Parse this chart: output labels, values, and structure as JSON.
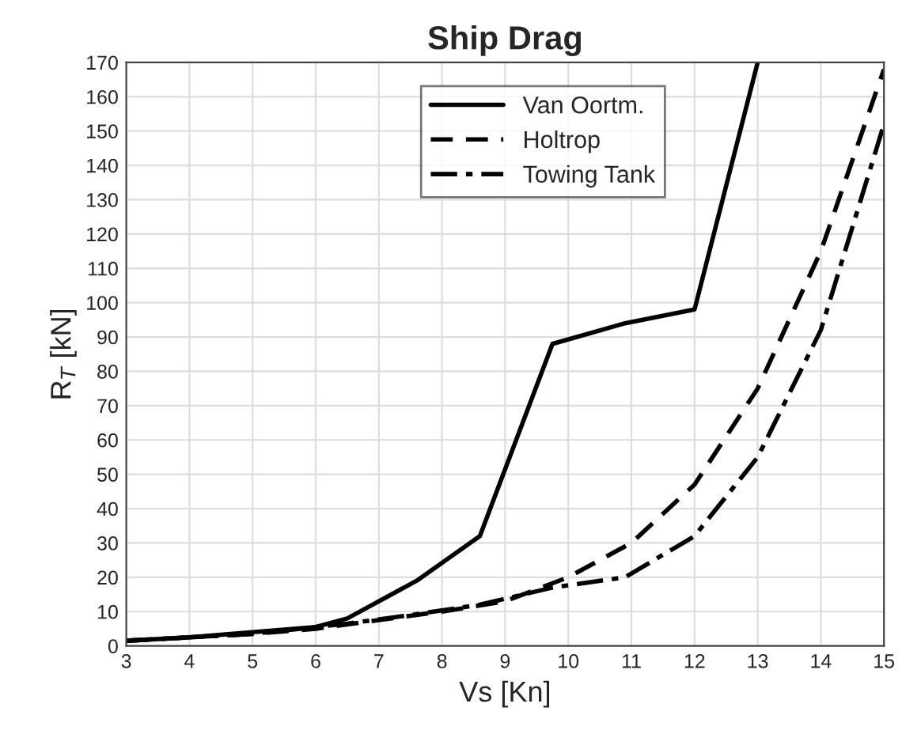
{
  "chart_data": {
    "type": "line",
    "title": "Ship Drag",
    "xlabel": "Vs [Kn]",
    "ylabel": "R$_{T}$ [kN]",
    "xlim": [
      3,
      15
    ],
    "xticks": [
      3,
      4,
      5,
      6,
      7,
      8,
      9,
      10,
      11,
      12,
      13,
      14,
      15
    ],
    "ylim": [
      0,
      170
    ],
    "yticks": [
      0,
      10,
      20,
      30,
      40,
      50,
      60,
      70,
      80,
      90,
      100,
      110,
      120,
      130,
      140,
      150,
      160,
      170
    ],
    "grid": true,
    "legend": "top",
    "marker": "none",
    "series": [
      {
        "name": "Van Oortm.",
        "color": "#000000",
        "line_style": "solid",
        "x": [
          3,
          4,
          5,
          6,
          6.5,
          7.6,
          8.6,
          9.75,
          10.9,
          12,
          13
        ],
        "values": [
          1.5,
          2.5,
          4,
          5.5,
          8,
          19,
          32,
          88,
          94,
          98,
          170
        ]
      },
      {
        "name": "Holtrop",
        "color": "#000000",
        "line_style": "dashed",
        "x": [
          3,
          4,
          5,
          6,
          7,
          8,
          9,
          10,
          11,
          12,
          13,
          14,
          15
        ],
        "values": [
          1.5,
          2.5,
          3.5,
          5,
          7.5,
          10,
          13,
          20,
          30,
          47,
          75,
          115,
          168
        ]
      },
      {
        "name": "Towing Tank",
        "color": "#000000",
        "line_style": "dashdot",
        "x": [
          3,
          4,
          5,
          6.5,
          7.5,
          8.6,
          9.75,
          10.9,
          12,
          13,
          14,
          15
        ],
        "values": [
          1.5,
          2.5,
          3.5,
          6.5,
          9,
          12,
          17,
          20,
          32,
          55,
          92,
          152
        ]
      }
    ]
  }
}
